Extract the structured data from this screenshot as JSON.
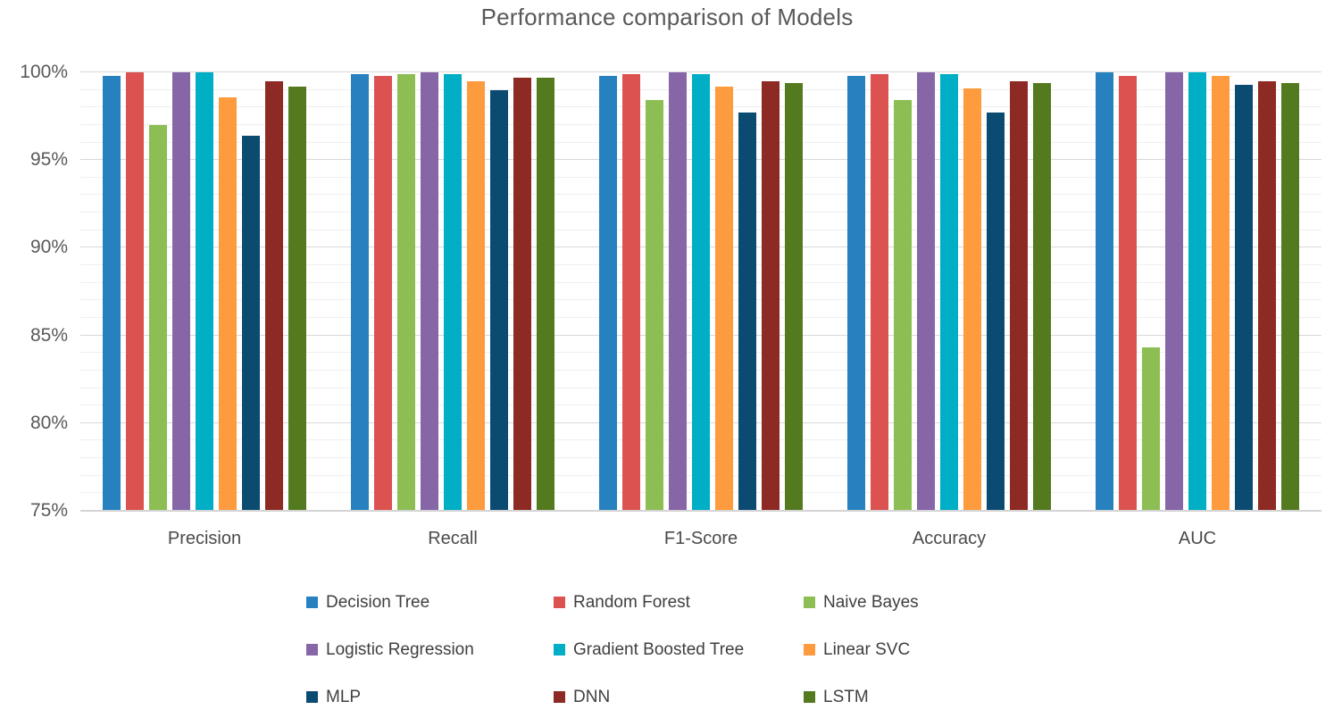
{
  "chart_data": {
    "type": "bar",
    "title": "Performance comparison of Models",
    "categories": [
      "Precision",
      "Recall",
      "F1-Score",
      "Accuracy",
      "AUC"
    ],
    "series": [
      {
        "name": "Decision Tree",
        "color": "#2781BE",
        "values": [
          99.8,
          99.9,
          99.8,
          99.8,
          100.0
        ]
      },
      {
        "name": "Random Forest",
        "color": "#DB5250",
        "values": [
          100.0,
          99.8,
          99.9,
          99.9,
          99.8
        ]
      },
      {
        "name": "Naive Bayes",
        "color": "#8CBE53",
        "values": [
          97.0,
          99.9,
          98.4,
          98.4,
          84.3
        ]
      },
      {
        "name": "Logistic Regression",
        "color": "#8766A8",
        "values": [
          100.0,
          100.0,
          100.0,
          100.0,
          100.0
        ]
      },
      {
        "name": "Gradient Boosted Tree",
        "color": "#00AEC6",
        "values": [
          100.0,
          99.9,
          99.9,
          99.9,
          100.0
        ]
      },
      {
        "name": "Linear SVC",
        "color": "#FD9B3E",
        "values": [
          98.6,
          99.5,
          99.2,
          99.1,
          99.8
        ]
      },
      {
        "name": "MLP",
        "color": "#0B4B72",
        "values": [
          96.4,
          99.0,
          97.7,
          97.7,
          99.3
        ]
      },
      {
        "name": "DNN",
        "color": "#8C2A23",
        "values": [
          99.5,
          99.7,
          99.5,
          99.5,
          99.5
        ]
      },
      {
        "name": "LSTM",
        "color": "#547A20",
        "values": [
          99.2,
          99.7,
          99.4,
          99.4,
          99.4
        ]
      }
    ],
    "ylim": [
      75,
      100
    ],
    "y_tick_labels": [
      "100%",
      "95%",
      "90%",
      "85%",
      "80%",
      "75%"
    ],
    "y_tick_values": [
      100,
      95,
      90,
      85,
      80,
      75
    ],
    "minor_grid_step": 1,
    "major_grid_step": 5,
    "grid": true,
    "legend_position": "bottom",
    "axis_text_color": "#595959"
  }
}
